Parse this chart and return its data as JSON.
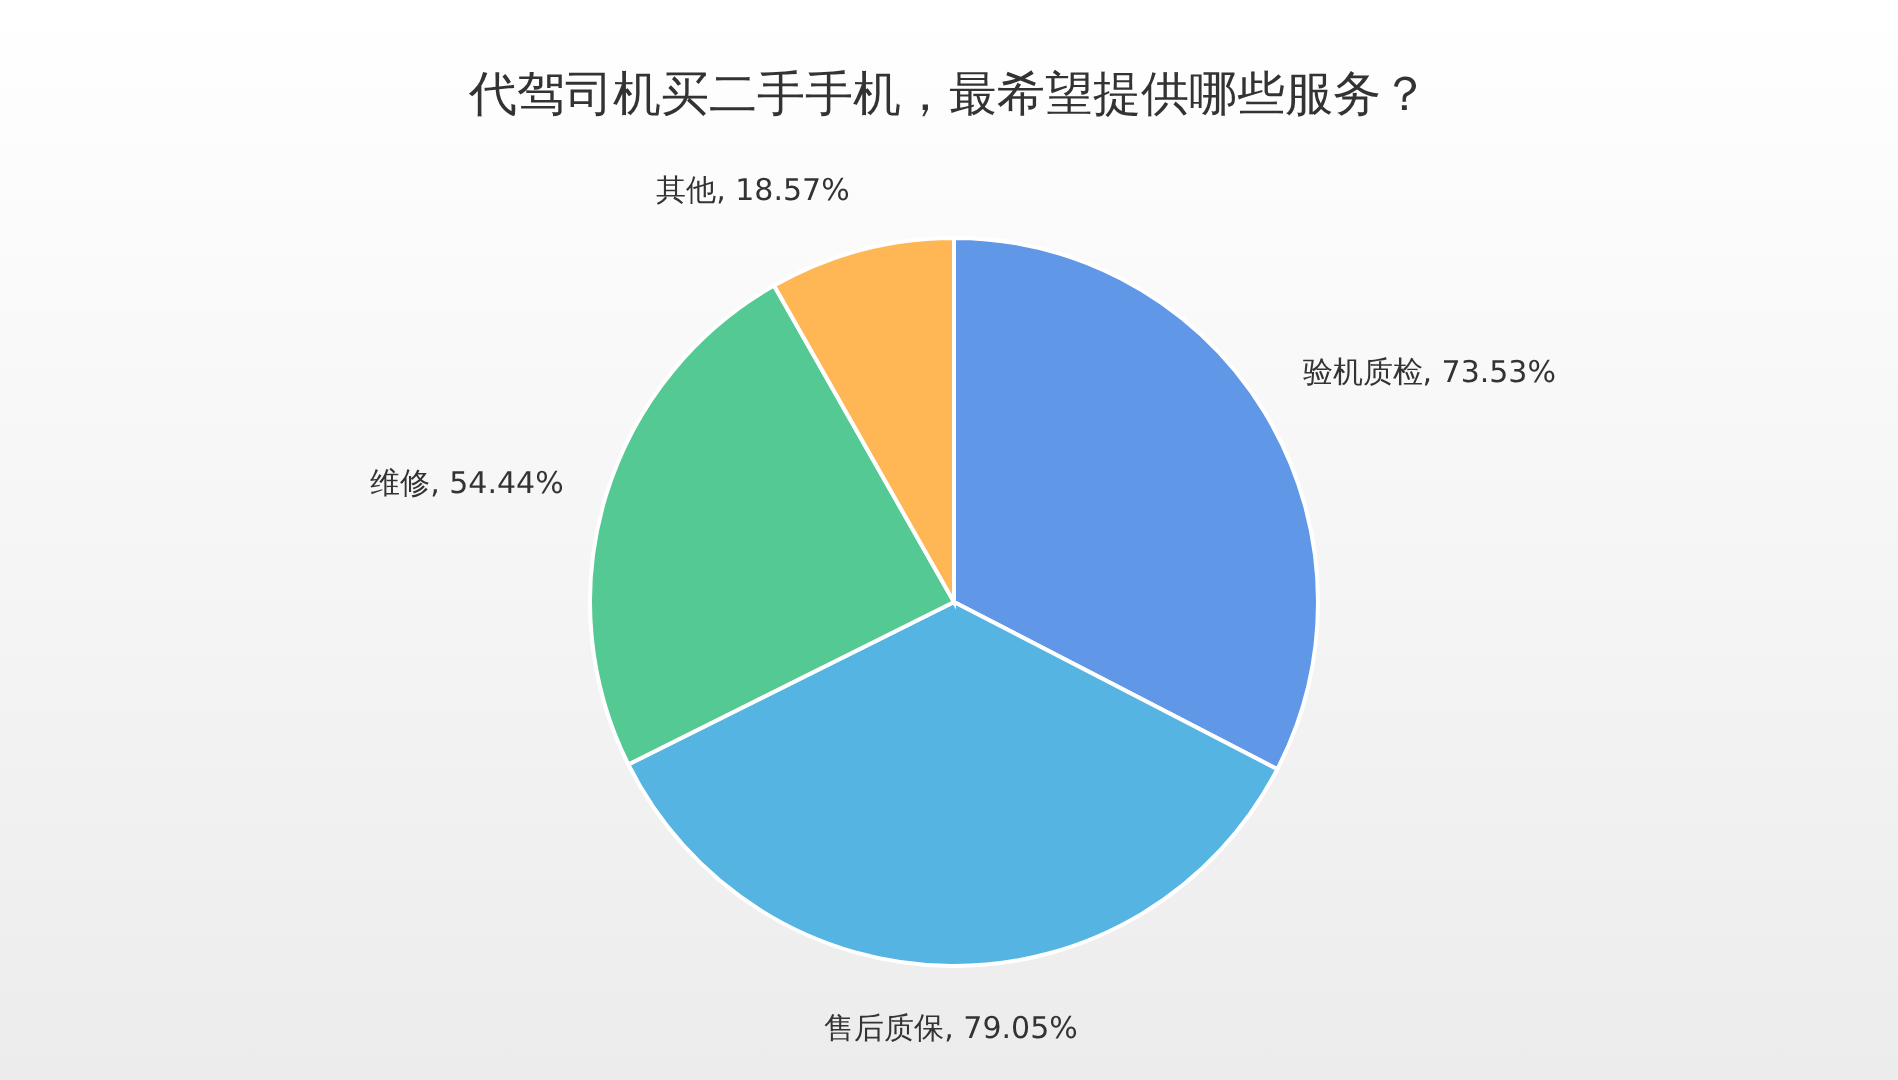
{
  "chart_data": {
    "type": "pie",
    "title": "代驾司机买二手手机，最希望提供哪些服务？",
    "categories": [
      "验机质检",
      "售后质保",
      "维修",
      "其他"
    ],
    "values": [
      73.53,
      79.05,
      54.44,
      18.57
    ],
    "value_labels": [
      "73.53%",
      "79.05%",
      "54.44%",
      "18.57%"
    ],
    "colors": [
      "#6097e6",
      "#56b4e3",
      "#55c994",
      "#ffb755"
    ]
  }
}
